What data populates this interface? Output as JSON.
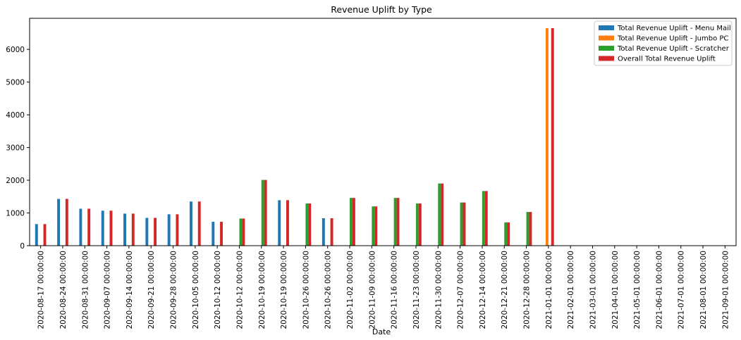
{
  "chart_data": {
    "type": "bar",
    "title": "Revenue Uplift by Type",
    "xlabel": "Date",
    "ylabel": "",
    "ylim": [
      0,
      6950
    ],
    "yticks": [
      0,
      1000,
      2000,
      3000,
      4000,
      5000,
      6000
    ],
    "grid": false,
    "legend_position": "top-right",
    "categories": [
      "2020-08-17 00:00:00",
      "2020-08-24 00:00:00",
      "2020-08-31 00:00:00",
      "2020-09-07 00:00:00",
      "2020-09-14 00:00:00",
      "2020-09-21 00:00:00",
      "2020-09-28 00:00:00",
      "2020-10-05 00:00:00",
      "2020-10-12 00:00:00",
      "2020-10-12 00:00:00",
      "2020-10-19 00:00:00",
      "2020-10-19 00:00:00",
      "2020-10-26 00:00:00",
      "2020-10-26 00:00:00",
      "2020-11-02 00:00:00",
      "2020-11-09 00:00:00",
      "2020-11-16 00:00:00",
      "2020-11-23 00:00:00",
      "2020-11-30 00:00:00",
      "2020-12-07 00:00:00",
      "2020-12-14 00:00:00",
      "2020-12-21 00:00:00",
      "2020-12-28 00:00:00",
      "2021-01-01 00:00:00",
      "2021-02-01 00:00:00",
      "2021-03-01 00:00:00",
      "2021-04-01 00:00:00",
      "2021-05-01 00:00:00",
      "2021-06-01 00:00:00",
      "2021-07-01 00:00:00",
      "2021-08-01 00:00:00",
      "2021-09-01 00:00:00"
    ],
    "series": [
      {
        "name": "Total Revenue Uplift - Menu Mail",
        "color": "#1f77b4",
        "values": [
          660,
          1430,
          1130,
          1070,
          980,
          850,
          960,
          1350,
          730,
          0,
          0,
          1390,
          0,
          840,
          0,
          0,
          0,
          0,
          0,
          0,
          0,
          0,
          0,
          0,
          0,
          0,
          0,
          0,
          0,
          0,
          0,
          0
        ]
      },
      {
        "name": "Total Revenue Uplift - Jumbo PC",
        "color": "#ff7f0e",
        "values": [
          0,
          0,
          0,
          0,
          0,
          0,
          0,
          0,
          0,
          0,
          0,
          0,
          0,
          0,
          0,
          0,
          0,
          0,
          0,
          0,
          0,
          0,
          0,
          6650,
          0,
          0,
          0,
          0,
          0,
          0,
          0,
          0
        ]
      },
      {
        "name": "Total Revenue Uplift - Scratcher",
        "color": "#2ca02c",
        "values": [
          0,
          0,
          0,
          0,
          0,
          0,
          0,
          0,
          0,
          830,
          2010,
          0,
          1290,
          0,
          1460,
          1200,
          1460,
          1290,
          1900,
          1320,
          1670,
          710,
          1030,
          0,
          0,
          0,
          0,
          0,
          0,
          0,
          0,
          0
        ]
      },
      {
        "name": "Overall Total Revenue Uplift",
        "color": "#d62728",
        "values": [
          660,
          1430,
          1130,
          1070,
          980,
          850,
          960,
          1350,
          730,
          830,
          2010,
          1390,
          1290,
          840,
          1460,
          1200,
          1460,
          1290,
          1900,
          1320,
          1670,
          710,
          1030,
          6650,
          0,
          0,
          0,
          0,
          0,
          0,
          0,
          0
        ]
      }
    ]
  }
}
